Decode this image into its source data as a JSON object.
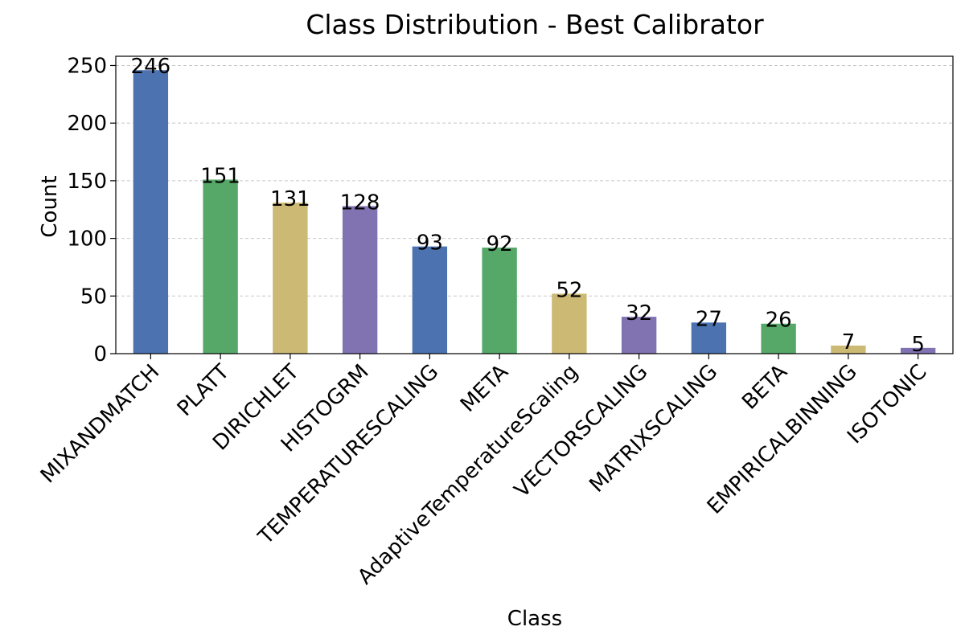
{
  "chart_data": {
    "type": "bar",
    "title": "Class Distribution - Best Calibrator",
    "xlabel": "Class",
    "ylabel": "Count",
    "categories": [
      "MIXANDMATCH",
      "PLATT",
      "DIRICHLET",
      "HISTOGRM",
      "TEMPERATURESCALING",
      "META",
      "AdaptiveTemperatureScaling",
      "VECTORSCALING",
      "MATRIXSCALING",
      "BETA",
      "EMPIRICALBINNING",
      "ISOTONIC"
    ],
    "values": [
      246,
      151,
      131,
      128,
      93,
      92,
      52,
      32,
      27,
      26,
      7,
      5
    ],
    "bar_colors": [
      "#4c72b0",
      "#55a868",
      "#ccb974",
      "#8172b2"
    ],
    "ylim": [
      0,
      258
    ],
    "yticks": [
      0,
      50,
      100,
      150,
      200,
      250
    ],
    "grid": "y-dashed",
    "legend": "none"
  }
}
